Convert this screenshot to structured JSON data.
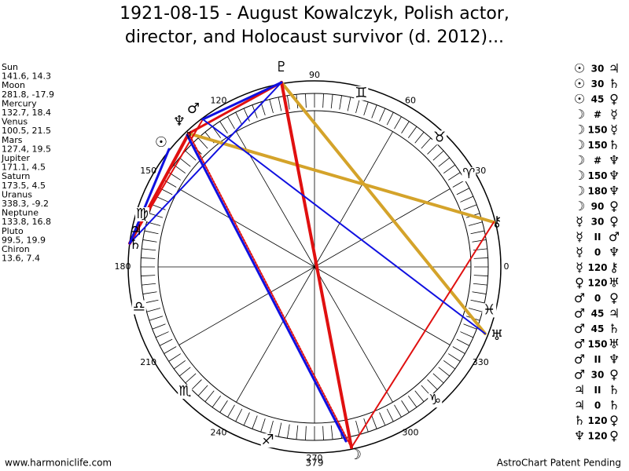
{
  "title": [
    "1921-08-15 - August Kowalczyk, Polish actor,",
    "director, and Holocaust survivor (d. 2012)..."
  ],
  "planets": [
    {
      "name": "Sun",
      "position": "141.6, 14.3"
    },
    {
      "name": "Moon",
      "position": "281.8, -17.9"
    },
    {
      "name": "Mercury",
      "position": "132.7, 18.4"
    },
    {
      "name": "Venus",
      "position": "100.5, 21.5"
    },
    {
      "name": "Mars",
      "position": "127.4, 19.5"
    },
    {
      "name": "Jupiter",
      "position": "171.1, 4.5"
    },
    {
      "name": "Saturn",
      "position": "173.5, 4.5"
    },
    {
      "name": "Uranus",
      "position": "338.3, -9.2"
    },
    {
      "name": "Neptune",
      "position": "133.8, 16.8"
    },
    {
      "name": "Pluto",
      "position": "99.5, 19.9"
    },
    {
      "name": "Chiron",
      "position": "13.6, 7.4"
    }
  ],
  "aspects": [
    {
      "from": "☉",
      "angle": "30",
      "to": "♃"
    },
    {
      "from": "☉",
      "angle": "30",
      "to": "♄"
    },
    {
      "from": "☉",
      "angle": "45",
      "to": "♀"
    },
    {
      "from": "☽",
      "angle": "#",
      "to": "☿"
    },
    {
      "from": "☽",
      "angle": "150",
      "to": "☿"
    },
    {
      "from": "☽",
      "angle": "150",
      "to": "♄"
    },
    {
      "from": "☽",
      "angle": "#",
      "to": "♆"
    },
    {
      "from": "☽",
      "angle": "150",
      "to": "♆"
    },
    {
      "from": "☽",
      "angle": "180",
      "to": "♆"
    },
    {
      "from": "☽",
      "angle": "90",
      "to": "♀"
    },
    {
      "from": "☿",
      "angle": "30",
      "to": "♀"
    },
    {
      "from": "☿",
      "angle": "II",
      "to": "♂"
    },
    {
      "from": "☿",
      "angle": "0",
      "to": "♆"
    },
    {
      "from": "☿",
      "angle": "120",
      "to": "⚷"
    },
    {
      "from": "♀",
      "angle": "120",
      "to": "♅"
    },
    {
      "from": "♂",
      "angle": "0",
      "to": "♀"
    },
    {
      "from": "♂",
      "angle": "45",
      "to": "♃"
    },
    {
      "from": "♂",
      "angle": "45",
      "to": "♄"
    },
    {
      "from": "♂",
      "angle": "150",
      "to": "♅"
    },
    {
      "from": "♂",
      "angle": "II",
      "to": "♆"
    },
    {
      "from": "♂",
      "angle": "30",
      "to": "♀"
    },
    {
      "from": "♃",
      "angle": "II",
      "to": "♄"
    },
    {
      "from": "♃",
      "angle": "0",
      "to": "♄"
    },
    {
      "from": "♄",
      "angle": "120",
      "to": "♀"
    },
    {
      "from": "♆",
      "angle": "120",
      "to": "♀"
    }
  ],
  "wheel": {
    "degree_labels": [
      0,
      30,
      60,
      90,
      120,
      150,
      180,
      210,
      240,
      270,
      300,
      330
    ],
    "signs": [
      "♈",
      "♉",
      "♊",
      "♍",
      "♎",
      "♏",
      "♐",
      "♑",
      "♓"
    ],
    "planet_glyphs": [
      "♇",
      "♂",
      "♆",
      "☉",
      "♃",
      "♄",
      "⚷",
      "♅",
      "☽",
      "☿"
    ],
    "center_label": "379"
  },
  "footer": {
    "left": "www.harmoniclife.com",
    "right": "AstroChart Patent Pending"
  }
}
